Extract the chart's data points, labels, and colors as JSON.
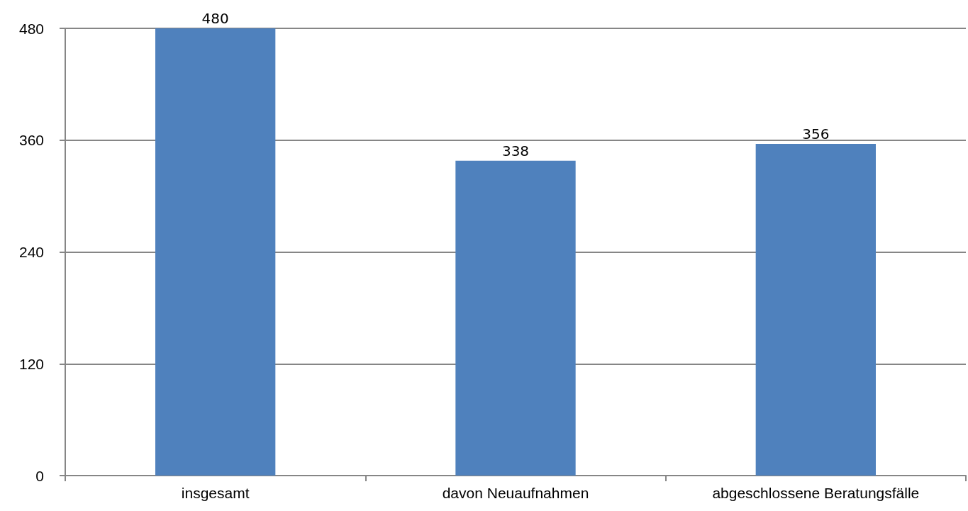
{
  "chart_data": {
    "type": "bar",
    "categories": [
      "insgesamt",
      "davon Neuaufnahmen",
      "abgeschlossene Beratungsfälle"
    ],
    "values": [
      480,
      338,
      356
    ],
    "color": "#4f81bd",
    "ylim": [
      0,
      480
    ],
    "yticks": [
      0,
      120,
      240,
      360,
      480
    ],
    "grid": "y",
    "data_labels": true
  }
}
